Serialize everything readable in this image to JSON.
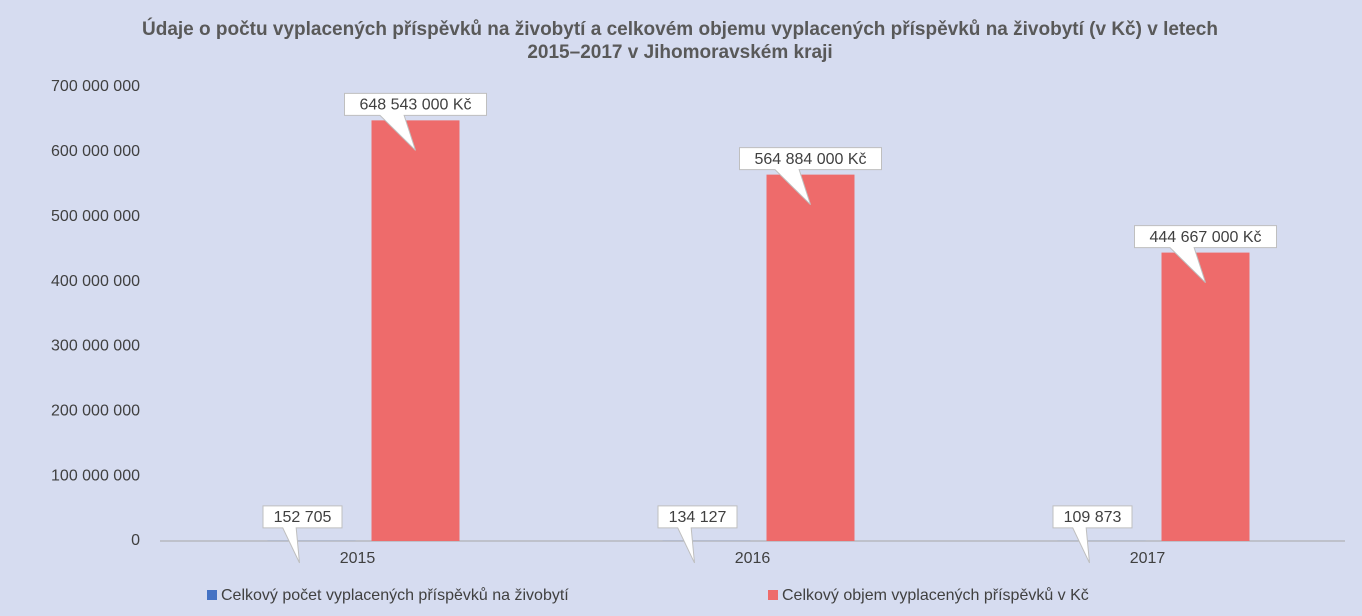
{
  "chart_data": {
    "type": "bar",
    "title": "Údaje o počtu vyplacených příspěvků na živobytí a celkovém objemu vyplacených příspěvků na živobytí (v Kč) v letech 2015–2017 v Jihomoravském kraji",
    "categories": [
      "2015",
      "2016",
      "2017"
    ],
    "series": [
      {
        "name": "Celkový počet vyplacených příspěvků na živobytí",
        "color": "#4472c4",
        "values": [
          152705,
          134127,
          109873
        ],
        "value_labels": [
          "152 705",
          "134 127",
          "109 873"
        ]
      },
      {
        "name": "Celkový objem vyplacených příspěvků v Kč",
        "color": "#ee6b6b",
        "values": [
          648543000,
          564884000,
          444667000
        ],
        "value_labels": [
          "648 543 000 Kč",
          "564 884 000 Kč",
          "444 667 000 Kč"
        ]
      }
    ],
    "ylim": [
      0,
      700000000
    ],
    "yticks": [
      0,
      {
        "value": 100000000,
        "label": "100 000 000"
      },
      {
        "value": 200000000,
        "label": "200 000 000"
      },
      {
        "value": 300000000,
        "label": "300 000 000"
      },
      {
        "value": 400000000,
        "label": "400 000 000"
      },
      {
        "value": 500000000,
        "label": "500 000 000"
      },
      {
        "value": 600000000,
        "label": "600 000 000"
      },
      {
        "value": 700000000,
        "label": "700 000 000"
      }
    ],
    "grid": false,
    "legend": "bottom"
  }
}
